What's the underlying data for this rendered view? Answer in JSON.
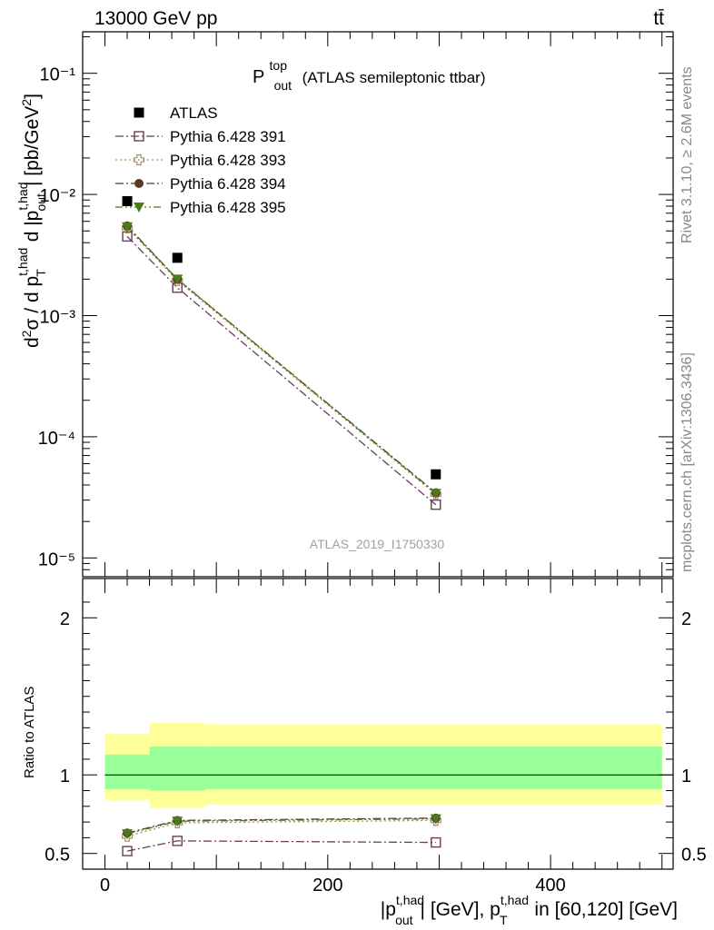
{
  "header": {
    "energy": "13000 GeV pp",
    "process": "tt̄"
  },
  "side_labels": {
    "rivet": "Rivet 3.1.10, ≥ 2.6M events",
    "mcplots": "mcplots.cern.ch [arXiv:1306.3436]"
  },
  "chart_data": [
    {
      "type": "scatter",
      "panel": "main",
      "title_main": "P",
      "title_sup": "top",
      "title_sub": "out",
      "title_rest": "(ATLAS semileptonic ttbar)",
      "watermark": "ATLAS_2019_I1750330",
      "ylabel": "d²σ / d p_T^{t,had} d |p_out^{t,had}| [pb/GeV²]",
      "yscale": "log",
      "ylim": [
        7e-06,
        0.22
      ],
      "xlim": [
        -20,
        510
      ],
      "ytick_labels": [
        "10⁻⁵",
        "10⁻⁴",
        "10⁻³",
        "10⁻²",
        "10⁻¹"
      ],
      "ytick_values": [
        1e-05,
        0.0001,
        0.001,
        0.01,
        0.1
      ],
      "legend_position": "top-left",
      "series": [
        {
          "name": "ATLAS",
          "marker": "filled-square",
          "color": "#000000",
          "x": [
            20,
            65,
            297
          ],
          "y": [
            0.0088,
            0.003,
            4.9e-05
          ]
        },
        {
          "name": "Pythia 6.428 391",
          "marker": "open-square",
          "color": "#6b3d55",
          "line": "dash-dot",
          "x": [
            20,
            65,
            297
          ],
          "y": [
            0.0045,
            0.0017,
            2.75e-05
          ]
        },
        {
          "name": "Pythia 6.428 393",
          "marker": "open-cross",
          "color": "#a09060",
          "line": "dotted",
          "x": [
            20,
            65,
            297
          ],
          "y": [
            0.0053,
            0.00195,
            3.35e-05
          ]
        },
        {
          "name": "Pythia 6.428 394",
          "marker": "filled-circle",
          "color": "#5c3a22",
          "line": "dash-dot",
          "x": [
            20,
            65,
            297
          ],
          "y": [
            0.0055,
            0.002,
            3.45e-05
          ]
        },
        {
          "name": "Pythia 6.428 395",
          "marker": "filled-triangle-down",
          "color": "#4a7a1a",
          "line": "dash-dot-dot",
          "x": [
            20,
            65,
            297
          ],
          "y": [
            0.0054,
            0.002,
            3.4e-05
          ]
        }
      ]
    },
    {
      "type": "scatter",
      "panel": "ratio",
      "ylabel": "Ratio to ATLAS",
      "ylim": [
        0.4,
        2.25
      ],
      "xlim": [
        -20,
        510
      ],
      "ytick_labels": [
        "0.5",
        "1",
        "2"
      ],
      "ytick_values": [
        0.5,
        1,
        2
      ],
      "xlabel": "|p_out^{t,had}| [GeV], p_T^{t,had} in [60,120] [GeV]",
      "xtick_labels": [
        "0",
        "200",
        "400"
      ],
      "xtick_values": [
        0,
        200,
        400
      ],
      "bands": [
        {
          "x0": 0,
          "x1": 40,
          "yellow": [
            0.84,
            1.26
          ],
          "green": [
            0.91,
            1.13
          ]
        },
        {
          "x0": 40,
          "x1": 90,
          "yellow": [
            0.79,
            1.33
          ],
          "green": [
            0.9,
            1.18
          ]
        },
        {
          "x0": 90,
          "x1": 500,
          "yellow": [
            0.81,
            1.32
          ],
          "green": [
            0.91,
            1.18
          ]
        }
      ],
      "band_colors": {
        "yellow": "#ffff99",
        "green": "#99ff99"
      },
      "series": [
        {
          "name": "Pythia 6.428 391",
          "x": [
            20,
            65,
            297
          ],
          "y": [
            0.515,
            0.58,
            0.57
          ]
        },
        {
          "name": "Pythia 6.428 393",
          "x": [
            20,
            65,
            297
          ],
          "y": [
            0.61,
            0.695,
            0.71
          ]
        },
        {
          "name": "Pythia 6.428 394",
          "x": [
            20,
            65,
            297
          ],
          "y": [
            0.63,
            0.71,
            0.725
          ]
        },
        {
          "name": "Pythia 6.428 395",
          "x": [
            20,
            65,
            297
          ],
          "y": [
            0.625,
            0.705,
            0.72
          ]
        }
      ]
    }
  ]
}
